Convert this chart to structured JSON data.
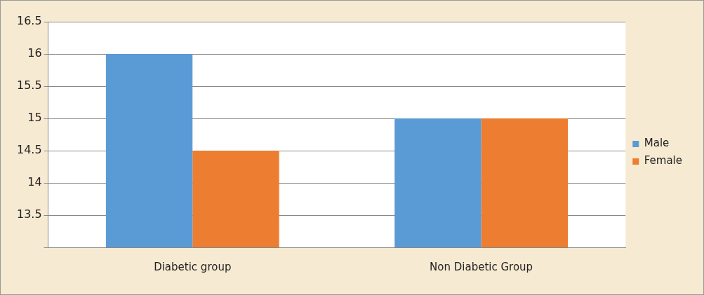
{
  "chart_data": {
    "type": "bar",
    "categories": [
      "Diabetic group",
      "Non Diabetic Group"
    ],
    "series": [
      {
        "name": "Male",
        "color": "#5b9bd5",
        "values": [
          16,
          15
        ]
      },
      {
        "name": "Female",
        "color": "#ed7d31",
        "values": [
          14.5,
          15
        ]
      }
    ],
    "ylim": [
      13,
      16.5
    ],
    "yticks": [
      {
        "value": 13,
        "label": null
      },
      13.5,
      14,
      14.5,
      15,
      15.5,
      16,
      16.5
    ],
    "grid": "y",
    "legend": "right"
  }
}
